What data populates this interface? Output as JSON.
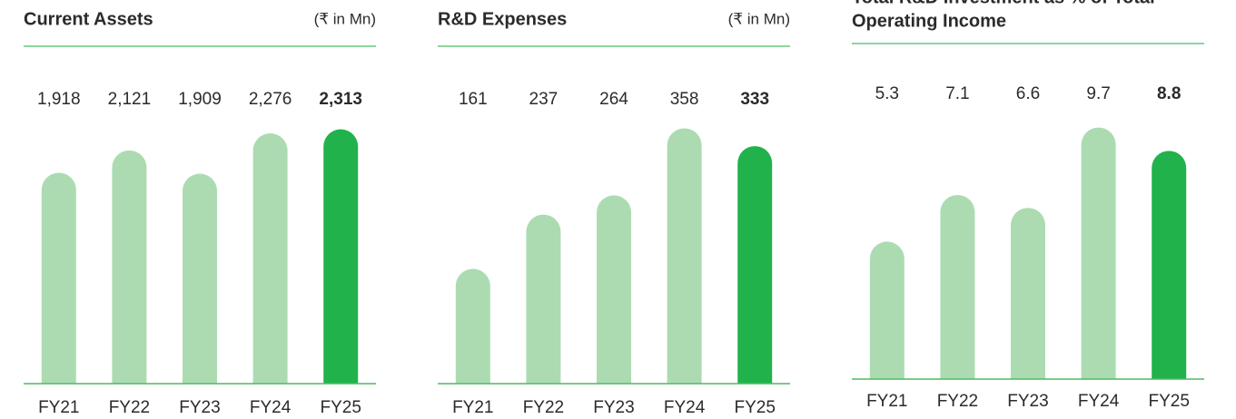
{
  "chart_data": [
    {
      "type": "bar",
      "title": [
        "Current Assets"
      ],
      "subtitle": "(₹ in Mn)",
      "categories": [
        "FY21",
        "FY22",
        "FY23",
        "FY24",
        "FY25"
      ],
      "values": [
        1918,
        2121,
        1909,
        2276,
        2313
      ],
      "value_labels": [
        "1,918",
        "2,121",
        "1,909",
        "2,276",
        "2,313"
      ],
      "colors": [
        "#acdbb2",
        "#acdbb2",
        "#acdbb2",
        "#acdbb2",
        "#22b24c"
      ],
      "ylim": [
        0,
        2400
      ]
    },
    {
      "type": "bar",
      "title": [
        "R&D Expenses"
      ],
      "subtitle": "(₹ in Mn)",
      "categories": [
        "FY21",
        "FY22",
        "FY23",
        "FY24",
        "FY25"
      ],
      "values": [
        161,
        237,
        264,
        358,
        333
      ],
      "colors": [
        "#acdbb2",
        "#acdbb2",
        "#acdbb2",
        "#acdbb2",
        "#22b24c"
      ],
      "ylim": [
        0,
        370
      ]
    },
    {
      "type": "bar",
      "title": [
        "Total R&D Investment as % of Total",
        "Operating Income"
      ],
      "categories": [
        "FY21",
        "FY22",
        "FY23",
        "FY24",
        "FY25"
      ],
      "values": [
        5.3,
        7.1,
        6.6,
        9.7,
        8.8
      ],
      "colors": [
        "#acdbb2",
        "#acdbb2",
        "#acdbb2",
        "#acdbb2",
        "#22b24c"
      ],
      "ylim": [
        0,
        10
      ]
    }
  ]
}
